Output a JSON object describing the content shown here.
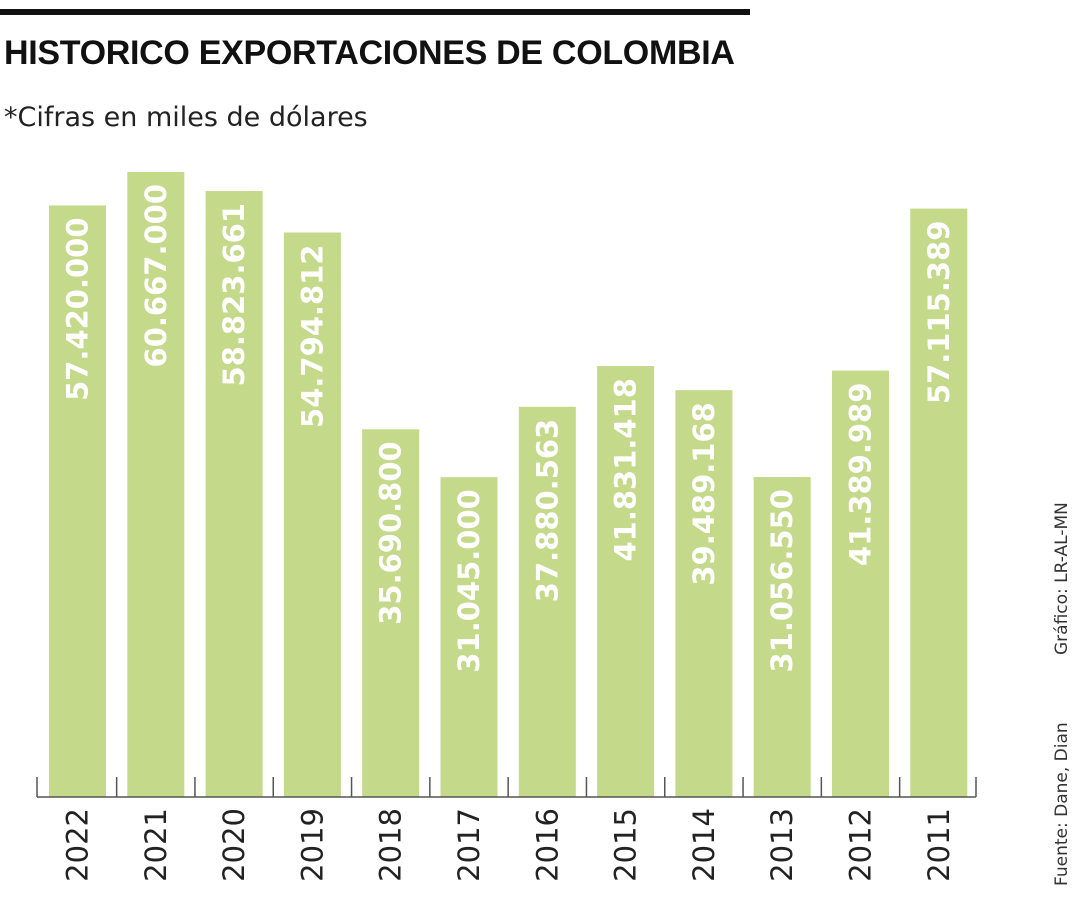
{
  "header": {
    "title": "HISTORICO EXPORTACIONES DE COLOMBIA",
    "subtitle": "*Cifras en miles de dólares"
  },
  "credits": {
    "grafico": "Gráfico: LR-AL-MN",
    "fuente": "Fuente: Dane, Dian"
  },
  "colors": {
    "bar": "#c5d98a",
    "axis": "#555555",
    "value_text": "#ffffff"
  },
  "chart_data": {
    "type": "bar",
    "orientation": "vertical",
    "categories": [
      "2022",
      "2021",
      "2020",
      "2019",
      "2018",
      "2017",
      "2016",
      "2015",
      "2014",
      "2013",
      "2012",
      "2011"
    ],
    "values": [
      57420000,
      60667000,
      58823661,
      54794812,
      35690800,
      31045000,
      37880563,
      41831418,
      39489168,
      31056550,
      41389989,
      57115389
    ],
    "value_labels": [
      "57.420.000",
      "60.667.000",
      "58.823.661",
      "54.794.812",
      "35.690.800",
      "31.045.000",
      "37.880.563",
      "41.831.418",
      "39.489.168",
      "31.056.550",
      "41.389.989",
      "57.115.389"
    ],
    "title": "HISTORICO EXPORTACIONES DE COLOMBIA",
    "subtitle": "*Cifras en miles de dólares",
    "xlabel": "",
    "ylabel": "",
    "ylim": [
      0,
      60667000
    ],
    "grid": false,
    "legend": "none",
    "value_label_position": "inside-top-rotated"
  }
}
